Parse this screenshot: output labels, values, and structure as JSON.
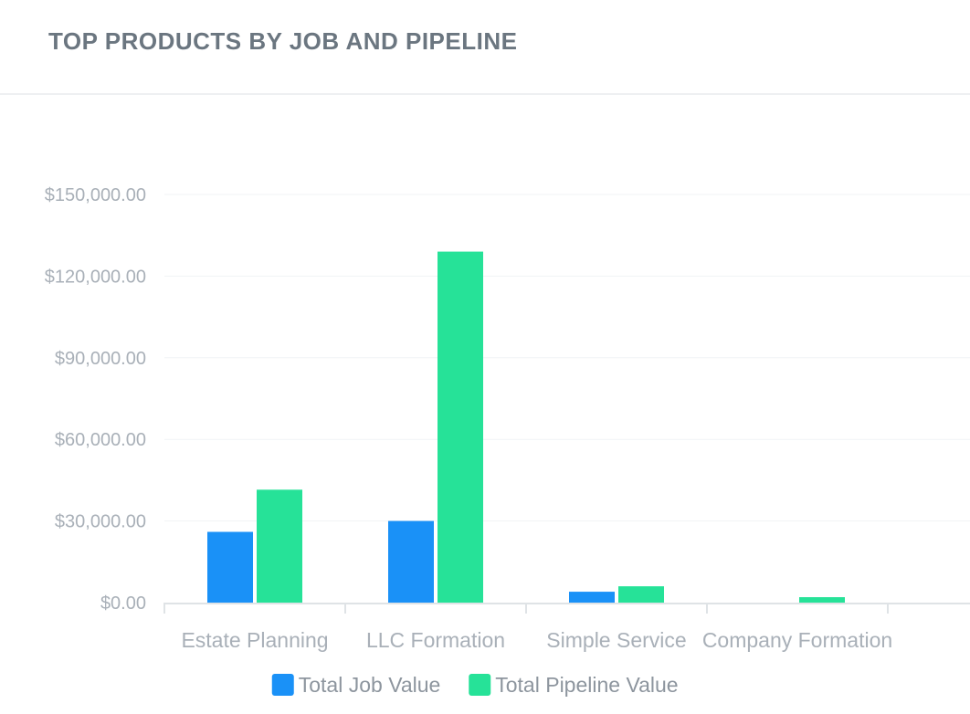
{
  "header": {
    "title": "TOP PRODUCTS BY JOB AND PIPELINE"
  },
  "chart_data": {
    "type": "bar",
    "title": "TOP PRODUCTS BY JOB AND PIPELINE",
    "xlabel": "",
    "ylabel": "",
    "categories": [
      "Estate Planning",
      "LLC Formation",
      "Simple Service",
      "Company Formation"
    ],
    "series": [
      {
        "name": "Total Job Value",
        "color": "#1a91f7",
        "values": [
          26000,
          30000,
          4000,
          0
        ]
      },
      {
        "name": "Total Pipeline Value",
        "color": "#26e298",
        "values": [
          41500,
          129000,
          6000,
          2000
        ]
      }
    ],
    "ylim": [
      0,
      150000
    ],
    "yticks": [
      0,
      30000,
      60000,
      90000,
      120000,
      150000
    ],
    "ytick_labels": [
      "$0.00",
      "$30,000.00",
      "$60,000.00",
      "$90,000.00",
      "$120,000.00",
      "$150,000.00"
    ],
    "grid": true,
    "legend": "bottom-center"
  }
}
